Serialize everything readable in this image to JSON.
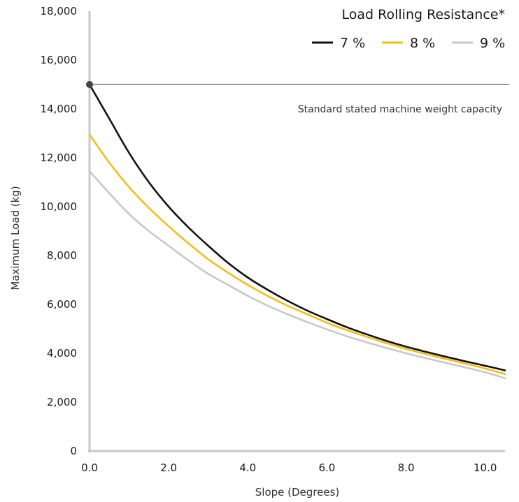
{
  "chart_data": {
    "type": "line",
    "xlabel": "Slope (Degrees)",
    "ylabel": "Maximum Load (kg)",
    "xlim": [
      0,
      10.5
    ],
    "ylim": [
      0,
      18000
    ],
    "x_ticks": [
      0,
      2,
      4,
      6,
      8,
      10
    ],
    "x_tick_labels": [
      "0.0",
      "2.0",
      "4.0",
      "6.0",
      "8.0",
      "10.0"
    ],
    "y_ticks": [
      0,
      2000,
      4000,
      6000,
      8000,
      10000,
      12000,
      14000,
      16000,
      18000
    ],
    "y_tick_labels": [
      "0",
      "2,000",
      "4,000",
      "6,000",
      "8,000",
      "10,000",
      "12,000",
      "14,000",
      "16,000",
      "18,000"
    ],
    "grid": false,
    "legend": {
      "title": "Load Rolling Resistance*",
      "placement": "top-right"
    },
    "x": [
      0,
      0.5,
      1,
      1.5,
      2,
      2.5,
      3,
      3.5,
      4,
      4.5,
      5,
      5.5,
      6,
      6.5,
      7,
      7.5,
      8,
      8.5,
      9,
      9.5,
      10,
      10.5
    ],
    "series": [
      {
        "name": "7 %",
        "color": "#111111",
        "values": [
          15000,
          13600,
          12200,
          11000,
          10000,
          9150,
          8400,
          7700,
          7100,
          6600,
          6150,
          5750,
          5400,
          5070,
          4780,
          4510,
          4270,
          4060,
          3860,
          3670,
          3490,
          3300
        ]
      },
      {
        "name": "8 %",
        "color": "#F2BE1A",
        "values": [
          12950,
          11800,
          10800,
          9950,
          9200,
          8500,
          7850,
          7300,
          6800,
          6350,
          5950,
          5600,
          5250,
          4950,
          4680,
          4420,
          4180,
          3970,
          3770,
          3580,
          3380,
          3150
        ]
      },
      {
        "name": "9 %",
        "color": "#C8C8C8",
        "values": [
          11450,
          10550,
          9700,
          9000,
          8400,
          7800,
          7250,
          6800,
          6350,
          5950,
          5600,
          5280,
          4980,
          4700,
          4450,
          4220,
          4000,
          3800,
          3610,
          3420,
          3220,
          2980
        ]
      }
    ],
    "reference_line": {
      "y": 15000,
      "label": "Standard stated machine weight capacity"
    }
  }
}
